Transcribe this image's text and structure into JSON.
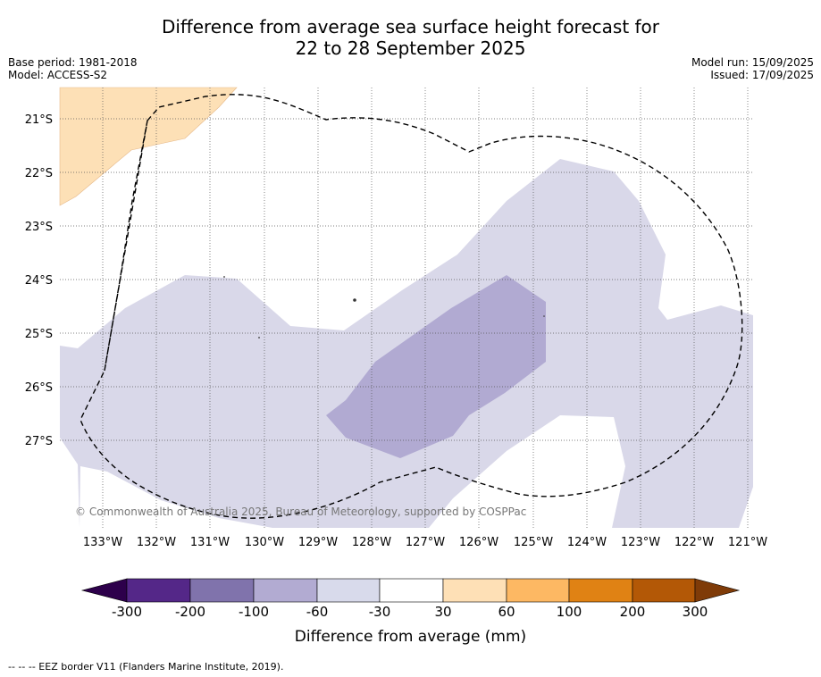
{
  "title": {
    "line1": "Difference from average sea surface height forecast for",
    "line2": "22 to 28 September 2025"
  },
  "meta": {
    "base_period": "Base period: 1981-2018",
    "model": "Model: ACCESS-S2",
    "model_run": "Model run: 15/09/2025",
    "issued": "Issued: 17/09/2025"
  },
  "map": {
    "lat_labels": [
      "21°S",
      "22°S",
      "23°S",
      "24°S",
      "25°S",
      "26°S",
      "27°S"
    ],
    "lon_labels": [
      "133°W",
      "132°W",
      "131°W",
      "130°W",
      "129°W",
      "128°W",
      "127°W",
      "126°W",
      "125°W",
      "124°W",
      "123°W",
      "122°W",
      "121°W"
    ],
    "copyright": "© Commonwealth of Australia 2025, Bureau of Meteorology, supported by COSPPac",
    "colors": {
      "positive_30_60": "#fde0b6",
      "negative_60_30": "#d9d8e9",
      "negative_100_60": "#b1aad2",
      "eez_line": "#000000"
    }
  },
  "colorbar": {
    "ticks": [
      "-300",
      "-200",
      "-100",
      "-60",
      "-30",
      "30",
      "60",
      "100",
      "200",
      "300"
    ],
    "colors": [
      "#2d004b",
      "#542788",
      "#8073ac",
      "#b2abd2",
      "#d8daeb",
      "#ffffff",
      "#fee0b6",
      "#fdb863",
      "#e08214",
      "#b35806",
      "#7f3b08"
    ],
    "label": "Difference from average (mm)"
  },
  "legend": {
    "eez": "--  --  -- EEZ border V11 (Flanders Marine Institute, 2019)."
  }
}
